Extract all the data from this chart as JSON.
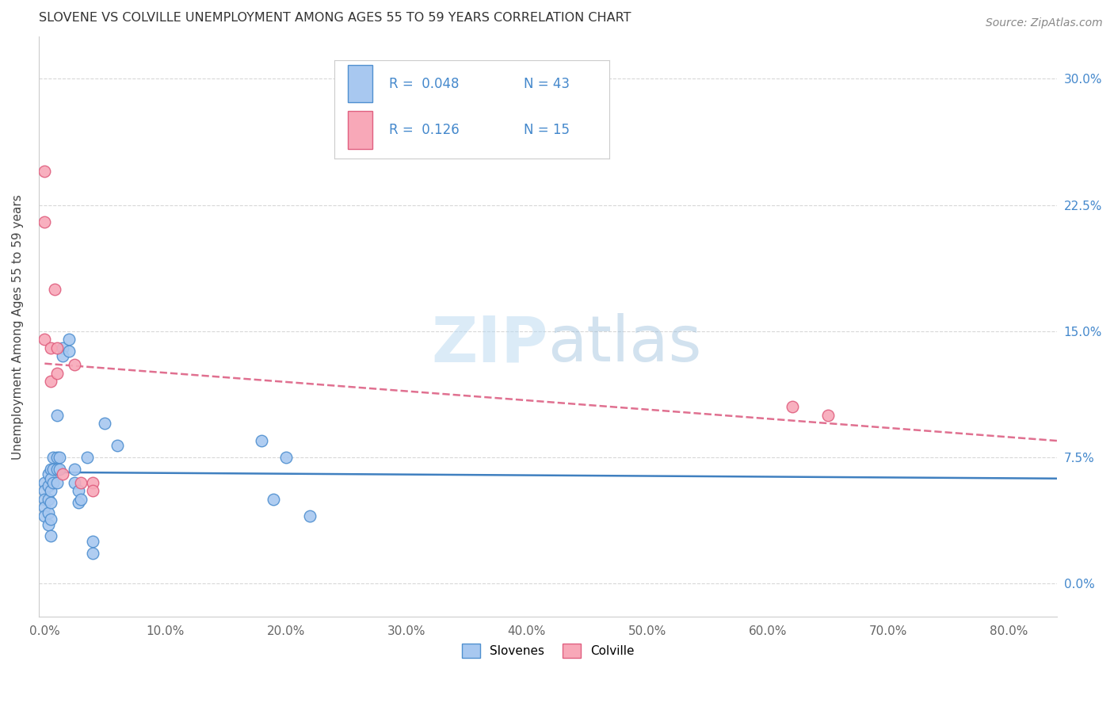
{
  "title": "SLOVENE VS COLVILLE UNEMPLOYMENT AMONG AGES 55 TO 59 YEARS CORRELATION CHART",
  "source": "Source: ZipAtlas.com",
  "ylabel": "Unemployment Among Ages 55 to 59 years",
  "xlabel_ticks": [
    "0.0%",
    "10.0%",
    "20.0%",
    "30.0%",
    "40.0%",
    "50.0%",
    "60.0%",
    "70.0%",
    "80.0%"
  ],
  "ytick_labels": [
    "0.0%",
    "7.5%",
    "15.0%",
    "22.5%",
    "30.0%"
  ],
  "ytick_values": [
    0.0,
    0.075,
    0.15,
    0.225,
    0.3
  ],
  "xtick_values": [
    0.0,
    0.1,
    0.2,
    0.3,
    0.4,
    0.5,
    0.6,
    0.7,
    0.8
  ],
  "xlim": [
    -0.005,
    0.84
  ],
  "ylim": [
    -0.02,
    0.325
  ],
  "slovene_color": "#a8c8f0",
  "colville_color": "#f8a8b8",
  "slovene_edge": "#5090d0",
  "colville_edge": "#e06080",
  "trend_slovene_color": "#4080c0",
  "trend_colville_color": "#e07090",
  "R_slovene": 0.048,
  "N_slovene": 43,
  "R_colville": 0.126,
  "N_colville": 15,
  "slovene_x": [
    0.0,
    0.0,
    0.0,
    0.0,
    0.0,
    0.003,
    0.003,
    0.003,
    0.003,
    0.003,
    0.005,
    0.005,
    0.005,
    0.005,
    0.005,
    0.005,
    0.007,
    0.007,
    0.007,
    0.01,
    0.01,
    0.01,
    0.01,
    0.012,
    0.012,
    0.015,
    0.015,
    0.02,
    0.02,
    0.025,
    0.025,
    0.028,
    0.028,
    0.03,
    0.035,
    0.04,
    0.04,
    0.05,
    0.06,
    0.18,
    0.19,
    0.2,
    0.22
  ],
  "slovene_y": [
    0.06,
    0.055,
    0.05,
    0.045,
    0.04,
    0.065,
    0.058,
    0.05,
    0.042,
    0.035,
    0.068,
    0.062,
    0.055,
    0.048,
    0.038,
    0.028,
    0.075,
    0.068,
    0.06,
    0.1,
    0.075,
    0.068,
    0.06,
    0.075,
    0.068,
    0.14,
    0.135,
    0.145,
    0.138,
    0.068,
    0.06,
    0.055,
    0.048,
    0.05,
    0.075,
    0.025,
    0.018,
    0.095,
    0.082,
    0.085,
    0.05,
    0.075,
    0.04
  ],
  "colville_x": [
    0.0,
    0.0,
    0.0,
    0.005,
    0.005,
    0.008,
    0.01,
    0.01,
    0.015,
    0.025,
    0.03,
    0.04,
    0.04,
    0.62,
    0.65
  ],
  "colville_y": [
    0.245,
    0.215,
    0.145,
    0.14,
    0.12,
    0.175,
    0.14,
    0.125,
    0.065,
    0.13,
    0.06,
    0.06,
    0.055,
    0.105,
    0.1
  ],
  "watermark_zip": "ZIP",
  "watermark_atlas": "atlas",
  "background_color": "#ffffff",
  "grid_color": "#d8d8d8"
}
